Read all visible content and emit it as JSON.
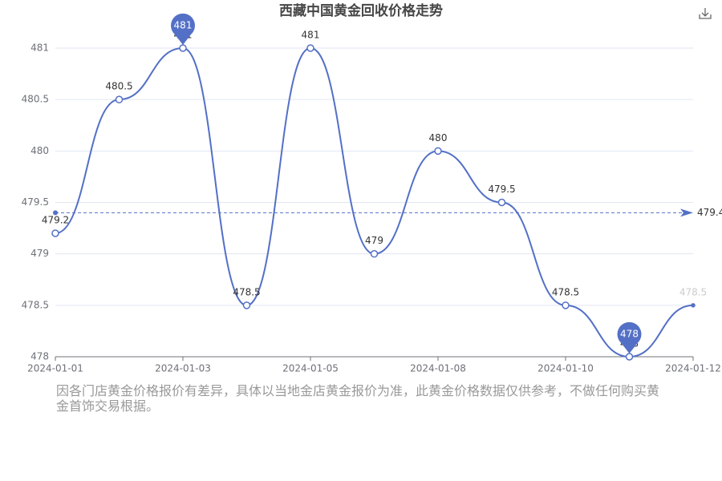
{
  "chart_data": {
    "type": "line",
    "title": "西藏中国黄金回收价格走势",
    "categories": [
      "2024-01-01",
      null,
      "2024-01-03",
      null,
      "2024-01-05",
      null,
      "2024-01-08",
      null,
      "2024-01-10",
      null,
      "2024-01-12"
    ],
    "values": [
      479.2,
      480.5,
      481,
      478.5,
      481,
      479,
      480,
      479.5,
      478.5,
      478,
      478.5
    ],
    "color": "#5470c6",
    "ylim": [
      478,
      481
    ],
    "yticks": [
      478,
      478.5,
      479,
      479.5,
      480,
      480.5,
      481
    ],
    "grid": true,
    "average": 479.4,
    "max_marker": 481,
    "min_marker": 478,
    "note": "因各门店黄金价格报价有差异，具体以当地金店黄金报价为准，此黄金价格数据仅供参考，不做任何购买黄金首饰交易根据。"
  }
}
